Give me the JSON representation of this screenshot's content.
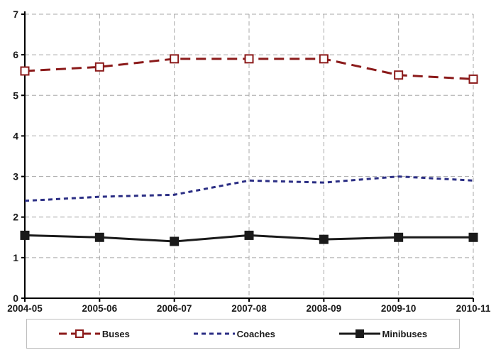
{
  "chart_data": {
    "type": "line",
    "categories": [
      "2004-05",
      "2005-06",
      "2006-07",
      "2007-08",
      "2008-09",
      "2009-10",
      "2010-11"
    ],
    "yticks": [
      0,
      1,
      2,
      3,
      4,
      5,
      6,
      7
    ],
    "ylim": [
      0,
      7
    ],
    "grid": true,
    "legend_position": "bottom",
    "series": [
      {
        "name": "Buses",
        "values": [
          5.6,
          5.7,
          5.9,
          5.9,
          5.9,
          5.5,
          5.4
        ],
        "color": "#8B1A1A",
        "line_style": "dashed",
        "marker": "open-square"
      },
      {
        "name": "Coaches",
        "values": [
          2.4,
          2.5,
          2.55,
          2.9,
          2.85,
          3.0,
          2.9
        ],
        "color": "#2B2E84",
        "line_style": "dotted",
        "marker": "none"
      },
      {
        "name": "Minibuses",
        "values": [
          1.55,
          1.5,
          1.4,
          1.55,
          1.45,
          1.5,
          1.5
        ],
        "color": "#1A1A1A",
        "line_style": "solid",
        "marker": "filled-square"
      }
    ],
    "colors": {
      "gridline": "#A8A8A8",
      "axis": "#000000",
      "tick_label": "#1A1A1A",
      "legend_border": "#BEBEBE",
      "background": "#FFFFFF"
    }
  }
}
